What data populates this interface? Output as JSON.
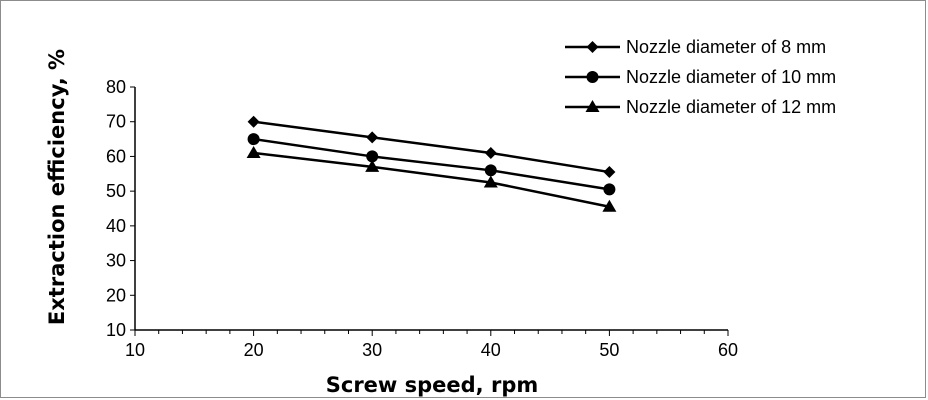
{
  "chart_data": {
    "type": "line",
    "title": "",
    "xlabel": "Screw speed, rpm",
    "ylabel": "Extraction efficiency, %",
    "xlim": [
      10,
      60
    ],
    "ylim": [
      10,
      80
    ],
    "x_ticks": [
      "10",
      "20",
      "30",
      "40",
      "50",
      "60"
    ],
    "y_ticks": [
      "10",
      "20",
      "30",
      "40",
      "50",
      "60",
      "70",
      "80"
    ],
    "grid": false,
    "legend_position": "top-right",
    "x": [
      20,
      30,
      40,
      50
    ],
    "series": [
      {
        "name": "Nozzle diameter of 8 mm",
        "marker": "diamond",
        "values": [
          70,
          65.5,
          61,
          55.5
        ]
      },
      {
        "name": "Nozzle diameter of 10 mm",
        "marker": "circle",
        "values": [
          65,
          60,
          56,
          50.5
        ]
      },
      {
        "name": "Nozzle diameter of 12 mm",
        "marker": "triangle",
        "values": [
          61,
          57,
          52.5,
          45.5
        ]
      }
    ],
    "colors": {
      "line": "#000000",
      "axis": "#000000",
      "border": "#8c8c8c"
    }
  }
}
